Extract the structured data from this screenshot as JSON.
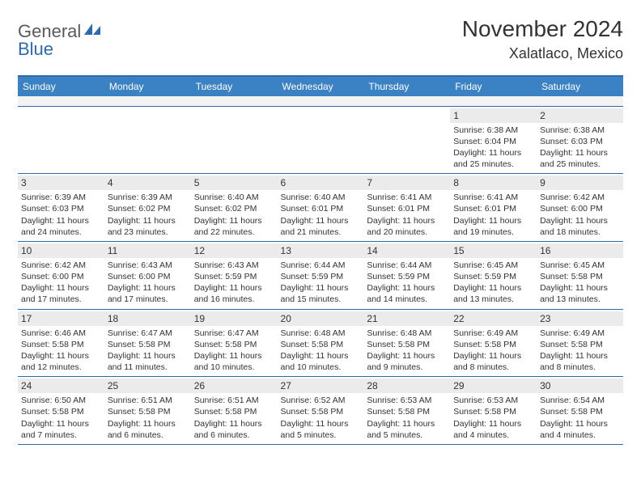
{
  "brand": {
    "text1": "General",
    "text2": "Blue",
    "mark_color": "#2a6bb0"
  },
  "header": {
    "title": "November 2024",
    "location": "Xalatlaco, Mexico"
  },
  "colors": {
    "header_bg": "#3b82c4",
    "border": "#2a6bb0",
    "daynum_bg": "#ebebeb",
    "spacer_bg": "#f3f3f3",
    "text": "#333333"
  },
  "day_headers": [
    "Sunday",
    "Monday",
    "Tuesday",
    "Wednesday",
    "Thursday",
    "Friday",
    "Saturday"
  ],
  "weeks": [
    [
      {
        "n": "",
        "sr": "",
        "ss": "",
        "dl": ""
      },
      {
        "n": "",
        "sr": "",
        "ss": "",
        "dl": ""
      },
      {
        "n": "",
        "sr": "",
        "ss": "",
        "dl": ""
      },
      {
        "n": "",
        "sr": "",
        "ss": "",
        "dl": ""
      },
      {
        "n": "",
        "sr": "",
        "ss": "",
        "dl": ""
      },
      {
        "n": "1",
        "sr": "Sunrise: 6:38 AM",
        "ss": "Sunset: 6:04 PM",
        "dl": "Daylight: 11 hours and 25 minutes."
      },
      {
        "n": "2",
        "sr": "Sunrise: 6:38 AM",
        "ss": "Sunset: 6:03 PM",
        "dl": "Daylight: 11 hours and 25 minutes."
      }
    ],
    [
      {
        "n": "3",
        "sr": "Sunrise: 6:39 AM",
        "ss": "Sunset: 6:03 PM",
        "dl": "Daylight: 11 hours and 24 minutes."
      },
      {
        "n": "4",
        "sr": "Sunrise: 6:39 AM",
        "ss": "Sunset: 6:02 PM",
        "dl": "Daylight: 11 hours and 23 minutes."
      },
      {
        "n": "5",
        "sr": "Sunrise: 6:40 AM",
        "ss": "Sunset: 6:02 PM",
        "dl": "Daylight: 11 hours and 22 minutes."
      },
      {
        "n": "6",
        "sr": "Sunrise: 6:40 AM",
        "ss": "Sunset: 6:01 PM",
        "dl": "Daylight: 11 hours and 21 minutes."
      },
      {
        "n": "7",
        "sr": "Sunrise: 6:41 AM",
        "ss": "Sunset: 6:01 PM",
        "dl": "Daylight: 11 hours and 20 minutes."
      },
      {
        "n": "8",
        "sr": "Sunrise: 6:41 AM",
        "ss": "Sunset: 6:01 PM",
        "dl": "Daylight: 11 hours and 19 minutes."
      },
      {
        "n": "9",
        "sr": "Sunrise: 6:42 AM",
        "ss": "Sunset: 6:00 PM",
        "dl": "Daylight: 11 hours and 18 minutes."
      }
    ],
    [
      {
        "n": "10",
        "sr": "Sunrise: 6:42 AM",
        "ss": "Sunset: 6:00 PM",
        "dl": "Daylight: 11 hours and 17 minutes."
      },
      {
        "n": "11",
        "sr": "Sunrise: 6:43 AM",
        "ss": "Sunset: 6:00 PM",
        "dl": "Daylight: 11 hours and 17 minutes."
      },
      {
        "n": "12",
        "sr": "Sunrise: 6:43 AM",
        "ss": "Sunset: 5:59 PM",
        "dl": "Daylight: 11 hours and 16 minutes."
      },
      {
        "n": "13",
        "sr": "Sunrise: 6:44 AM",
        "ss": "Sunset: 5:59 PM",
        "dl": "Daylight: 11 hours and 15 minutes."
      },
      {
        "n": "14",
        "sr": "Sunrise: 6:44 AM",
        "ss": "Sunset: 5:59 PM",
        "dl": "Daylight: 11 hours and 14 minutes."
      },
      {
        "n": "15",
        "sr": "Sunrise: 6:45 AM",
        "ss": "Sunset: 5:59 PM",
        "dl": "Daylight: 11 hours and 13 minutes."
      },
      {
        "n": "16",
        "sr": "Sunrise: 6:45 AM",
        "ss": "Sunset: 5:58 PM",
        "dl": "Daylight: 11 hours and 13 minutes."
      }
    ],
    [
      {
        "n": "17",
        "sr": "Sunrise: 6:46 AM",
        "ss": "Sunset: 5:58 PM",
        "dl": "Daylight: 11 hours and 12 minutes."
      },
      {
        "n": "18",
        "sr": "Sunrise: 6:47 AM",
        "ss": "Sunset: 5:58 PM",
        "dl": "Daylight: 11 hours and 11 minutes."
      },
      {
        "n": "19",
        "sr": "Sunrise: 6:47 AM",
        "ss": "Sunset: 5:58 PM",
        "dl": "Daylight: 11 hours and 10 minutes."
      },
      {
        "n": "20",
        "sr": "Sunrise: 6:48 AM",
        "ss": "Sunset: 5:58 PM",
        "dl": "Daylight: 11 hours and 10 minutes."
      },
      {
        "n": "21",
        "sr": "Sunrise: 6:48 AM",
        "ss": "Sunset: 5:58 PM",
        "dl": "Daylight: 11 hours and 9 minutes."
      },
      {
        "n": "22",
        "sr": "Sunrise: 6:49 AM",
        "ss": "Sunset: 5:58 PM",
        "dl": "Daylight: 11 hours and 8 minutes."
      },
      {
        "n": "23",
        "sr": "Sunrise: 6:49 AM",
        "ss": "Sunset: 5:58 PM",
        "dl": "Daylight: 11 hours and 8 minutes."
      }
    ],
    [
      {
        "n": "24",
        "sr": "Sunrise: 6:50 AM",
        "ss": "Sunset: 5:58 PM",
        "dl": "Daylight: 11 hours and 7 minutes."
      },
      {
        "n": "25",
        "sr": "Sunrise: 6:51 AM",
        "ss": "Sunset: 5:58 PM",
        "dl": "Daylight: 11 hours and 6 minutes."
      },
      {
        "n": "26",
        "sr": "Sunrise: 6:51 AM",
        "ss": "Sunset: 5:58 PM",
        "dl": "Daylight: 11 hours and 6 minutes."
      },
      {
        "n": "27",
        "sr": "Sunrise: 6:52 AM",
        "ss": "Sunset: 5:58 PM",
        "dl": "Daylight: 11 hours and 5 minutes."
      },
      {
        "n": "28",
        "sr": "Sunrise: 6:53 AM",
        "ss": "Sunset: 5:58 PM",
        "dl": "Daylight: 11 hours and 5 minutes."
      },
      {
        "n": "29",
        "sr": "Sunrise: 6:53 AM",
        "ss": "Sunset: 5:58 PM",
        "dl": "Daylight: 11 hours and 4 minutes."
      },
      {
        "n": "30",
        "sr": "Sunrise: 6:54 AM",
        "ss": "Sunset: 5:58 PM",
        "dl": "Daylight: 11 hours and 4 minutes."
      }
    ]
  ]
}
